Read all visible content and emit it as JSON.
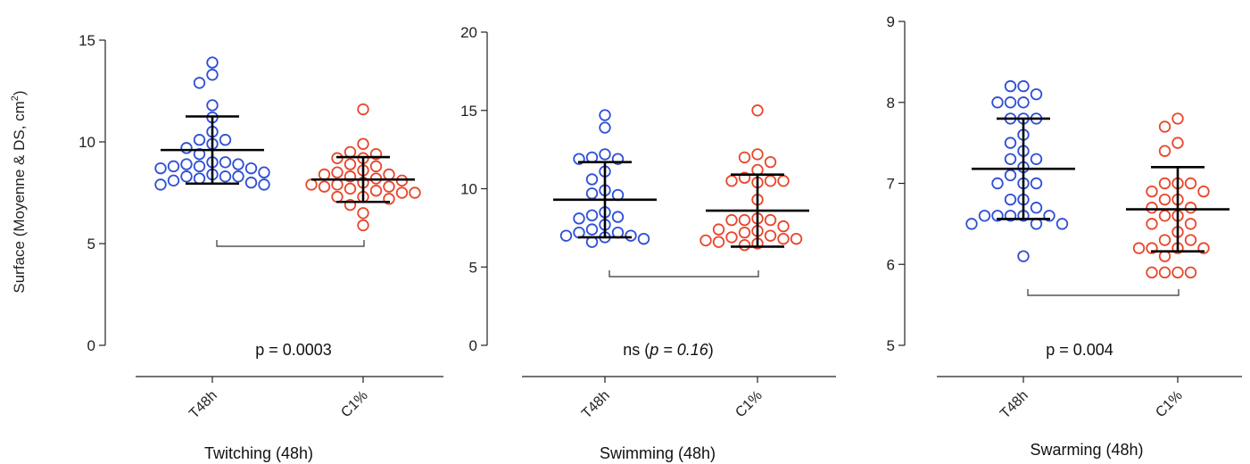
{
  "ylabel": "Surface (Moyenne & DS, cm",
  "ylabel_sup": "2",
  "ylabel_end": ")",
  "colors": {
    "T48h": "#2f4fd6",
    "C1%": "#e8472d",
    "axis": "#222222",
    "bar": "#000000"
  },
  "chart_data": [
    {
      "type": "scatter",
      "title": "Twitching (48h)",
      "categories": [
        "T48h",
        "C1%"
      ],
      "ylim": [
        0,
        15
      ],
      "yticks": [
        0,
        5,
        10,
        15
      ],
      "annotation": {
        "prefix": "p = 0.0003",
        "italic": "",
        "suffix": ""
      },
      "series": [
        {
          "name": "T48h",
          "mean": 9.6,
          "sd": 1.65,
          "values": [
            13.9,
            13.3,
            12.9,
            11.8,
            11.2,
            10.5,
            10.1,
            10.1,
            9.9,
            9.7,
            9.4,
            9.0,
            9.0,
            8.9,
            8.9,
            8.8,
            8.8,
            8.7,
            8.7,
            8.5,
            8.4,
            8.3,
            8.3,
            8.3,
            8.2,
            8.1,
            8.0,
            7.9,
            7.9
          ]
        },
        {
          "name": "C1%",
          "mean": 8.15,
          "sd": 1.1,
          "values": [
            11.6,
            9.9,
            9.5,
            9.4,
            9.2,
            9.2,
            8.9,
            8.8,
            8.6,
            8.5,
            8.4,
            8.4,
            8.3,
            8.2,
            8.1,
            8.0,
            7.9,
            7.9,
            7.8,
            7.8,
            7.7,
            7.6,
            7.5,
            7.5,
            7.3,
            7.3,
            7.2,
            6.9,
            6.5,
            5.9
          ]
        }
      ]
    },
    {
      "type": "scatter",
      "title": "Swimming (48h)",
      "categories": [
        "T48h",
        "C1%"
      ],
      "ylim": [
        0,
        20
      ],
      "yticks": [
        0,
        5,
        10,
        15,
        20
      ],
      "annotation": {
        "prefix": "ns (",
        "italic": "p = 0.16",
        "suffix": ")"
      },
      "series": [
        {
          "name": "T48h",
          "mean": 9.3,
          "sd": 2.4,
          "values": [
            14.7,
            13.9,
            12.2,
            12.0,
            11.9,
            11.9,
            11.1,
            10.6,
            9.9,
            9.7,
            9.6,
            8.5,
            8.3,
            8.2,
            8.1,
            7.7,
            7.4,
            7.2,
            7.2,
            7.0,
            7.0,
            6.9,
            6.8,
            6.6
          ]
        },
        {
          "name": "C1%",
          "mean": 8.6,
          "sd": 2.3,
          "values": [
            15.0,
            12.2,
            12.0,
            11.7,
            11.2,
            10.7,
            10.5,
            10.5,
            10.5,
            10.4,
            9.3,
            8.1,
            8.0,
            8.0,
            8.0,
            7.6,
            7.4,
            7.3,
            7.2,
            7.0,
            6.9,
            6.8,
            6.8,
            6.7,
            6.6,
            6.5,
            6.4
          ]
        }
      ]
    },
    {
      "type": "scatter",
      "title": "Swarming (48h)",
      "categories": [
        "T48h",
        "C1%"
      ],
      "ylim": [
        5,
        9
      ],
      "yticks": [
        5,
        6,
        7,
        8,
        9
      ],
      "annotation": {
        "prefix": "p = 0.004",
        "italic": "",
        "suffix": ""
      },
      "series": [
        {
          "name": "T48h",
          "mean": 7.18,
          "sd": 0.62,
          "values": [
            8.2,
            8.2,
            8.1,
            8.0,
            8.0,
            8.0,
            7.8,
            7.8,
            7.8,
            7.6,
            7.5,
            7.4,
            7.3,
            7.3,
            7.2,
            7.1,
            7.0,
            7.0,
            7.0,
            6.8,
            6.8,
            6.7,
            6.6,
            6.6,
            6.6,
            6.6,
            6.6,
            6.5,
            6.5,
            6.5,
            6.1
          ]
        },
        {
          "name": "C1%",
          "mean": 6.68,
          "sd": 0.52,
          "values": [
            7.8,
            7.7,
            7.5,
            7.4,
            7.0,
            7.0,
            7.0,
            6.9,
            6.9,
            6.8,
            6.8,
            6.7,
            6.7,
            6.6,
            6.6,
            6.5,
            6.5,
            6.4,
            6.3,
            6.3,
            6.2,
            6.2,
            6.2,
            6.2,
            6.1,
            5.9,
            5.9,
            5.9,
            5.9
          ]
        }
      ]
    }
  ]
}
